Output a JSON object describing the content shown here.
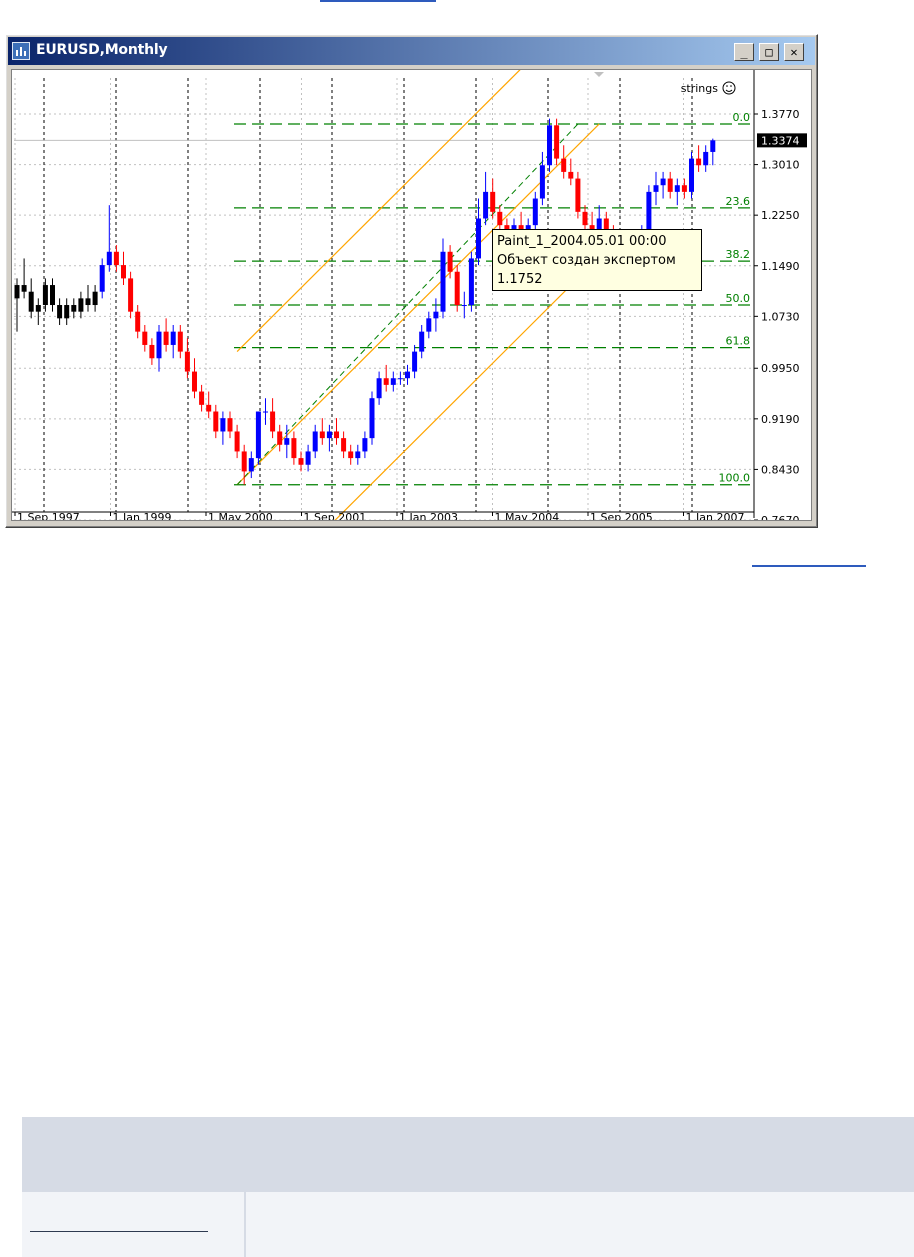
{
  "window": {
    "title": "EURUSD,Monthly",
    "buttons": {
      "minimize": "_",
      "maximize": "□",
      "close": "✕"
    }
  },
  "chart_data": {
    "type": "candlestick",
    "symbol": "EURUSD",
    "timeframe": "Monthly",
    "indicator_label": "strings",
    "indicator_icon": "smiley-icon",
    "price_axis": {
      "ticks": [
        "1.3770",
        "1.3010",
        "1.2250",
        "1.1490",
        "1.0730",
        "0.9950",
        "0.9190",
        "0.8430",
        "0.7670"
      ],
      "range": [
        0.767,
        1.377
      ]
    },
    "current_price": "1.3374",
    "time_axis": {
      "ticks": [
        "1 Sep 1997",
        "1 Jan 1999",
        "1 May 2000",
        "1 Sep 2001",
        "1 Jan 2003",
        "1 May 2004",
        "1 Sep 2005",
        "1 Jan 2007"
      ]
    },
    "fibonacci_levels": [
      {
        "label": "0.0",
        "price": 1.362
      },
      {
        "label": "23.6",
        "price": 1.236
      },
      {
        "label": "38.2",
        "price": 1.156
      },
      {
        "label": "50.0",
        "price": 1.09
      },
      {
        "label": "61.8",
        "price": 1.026
      },
      {
        "label": "100.0",
        "price": 0.82
      }
    ],
    "channel": {
      "start": {
        "month": 31,
        "price": 0.82
      },
      "end": {
        "month": 82,
        "price": 1.362
      },
      "offsets": [
        0.2,
        0,
        -0.2
      ]
    },
    "trendline": {
      "start": {
        "month": 31,
        "price": 0.82
      },
      "end": {
        "month": 79,
        "price": 1.362
      }
    },
    "candles": [
      [
        1.1,
        1.13,
        1.05,
        1.12
      ],
      [
        1.12,
        1.16,
        1.1,
        1.11
      ],
      [
        1.11,
        1.13,
        1.07,
        1.08
      ],
      [
        1.08,
        1.1,
        1.06,
        1.09
      ],
      [
        1.09,
        1.13,
        1.08,
        1.12
      ],
      [
        1.12,
        1.13,
        1.08,
        1.09
      ],
      [
        1.09,
        1.1,
        1.06,
        1.07
      ],
      [
        1.07,
        1.1,
        1.06,
        1.09
      ],
      [
        1.09,
        1.1,
        1.07,
        1.08
      ],
      [
        1.08,
        1.11,
        1.07,
        1.1
      ],
      [
        1.1,
        1.12,
        1.08,
        1.09
      ],
      [
        1.09,
        1.12,
        1.08,
        1.11
      ],
      [
        1.11,
        1.16,
        1.1,
        1.15
      ],
      [
        1.15,
        1.24,
        1.14,
        1.17
      ],
      [
        1.17,
        1.18,
        1.14,
        1.15
      ],
      [
        1.15,
        1.17,
        1.12,
        1.13
      ],
      [
        1.13,
        1.14,
        1.07,
        1.08
      ],
      [
        1.08,
        1.09,
        1.04,
        1.05
      ],
      [
        1.05,
        1.06,
        1.02,
        1.03
      ],
      [
        1.03,
        1.04,
        1.0,
        1.01
      ],
      [
        1.01,
        1.06,
        0.99,
        1.05
      ],
      [
        1.05,
        1.07,
        1.02,
        1.03
      ],
      [
        1.03,
        1.06,
        1.01,
        1.05
      ],
      [
        1.05,
        1.06,
        1.01,
        1.02
      ],
      [
        1.02,
        1.04,
        0.98,
        0.99
      ],
      [
        0.99,
        1.01,
        0.95,
        0.96
      ],
      [
        0.96,
        0.97,
        0.93,
        0.94
      ],
      [
        0.94,
        0.96,
        0.92,
        0.93
      ],
      [
        0.93,
        0.94,
        0.89,
        0.9
      ],
      [
        0.9,
        0.93,
        0.88,
        0.92
      ],
      [
        0.92,
        0.93,
        0.89,
        0.9
      ],
      [
        0.9,
        0.91,
        0.86,
        0.87
      ],
      [
        0.87,
        0.88,
        0.82,
        0.84
      ],
      [
        0.84,
        0.87,
        0.83,
        0.86
      ],
      [
        0.86,
        0.93,
        0.85,
        0.93
      ],
      [
        0.93,
        0.95,
        0.91,
        0.93
      ],
      [
        0.93,
        0.95,
        0.89,
        0.9
      ],
      [
        0.9,
        0.91,
        0.87,
        0.88
      ],
      [
        0.88,
        0.91,
        0.86,
        0.89
      ],
      [
        0.89,
        0.9,
        0.85,
        0.86
      ],
      [
        0.86,
        0.87,
        0.84,
        0.85
      ],
      [
        0.85,
        0.88,
        0.84,
        0.87
      ],
      [
        0.87,
        0.91,
        0.86,
        0.9
      ],
      [
        0.9,
        0.92,
        0.88,
        0.89
      ],
      [
        0.89,
        0.91,
        0.87,
        0.9
      ],
      [
        0.9,
        0.92,
        0.88,
        0.89
      ],
      [
        0.89,
        0.9,
        0.86,
        0.87
      ],
      [
        0.87,
        0.88,
        0.85,
        0.86
      ],
      [
        0.86,
        0.88,
        0.85,
        0.87
      ],
      [
        0.87,
        0.9,
        0.86,
        0.89
      ],
      [
        0.89,
        0.96,
        0.88,
        0.95
      ],
      [
        0.95,
        0.99,
        0.94,
        0.98
      ],
      [
        0.98,
        1.0,
        0.96,
        0.97
      ],
      [
        0.97,
        0.99,
        0.96,
        0.98
      ],
      [
        0.98,
        0.99,
        0.97,
        0.98
      ],
      [
        0.98,
        1.0,
        0.97,
        0.99
      ],
      [
        0.99,
        1.03,
        0.98,
        1.02
      ],
      [
        1.02,
        1.06,
        1.01,
        1.05
      ],
      [
        1.05,
        1.08,
        1.04,
        1.07
      ],
      [
        1.07,
        1.1,
        1.05,
        1.08
      ],
      [
        1.08,
        1.19,
        1.07,
        1.17
      ],
      [
        1.17,
        1.18,
        1.13,
        1.14
      ],
      [
        1.14,
        1.15,
        1.08,
        1.09
      ],
      [
        1.09,
        1.11,
        1.07,
        1.09
      ],
      [
        1.09,
        1.17,
        1.08,
        1.16
      ],
      [
        1.16,
        1.25,
        1.15,
        1.22
      ],
      [
        1.22,
        1.29,
        1.21,
        1.26
      ],
      [
        1.26,
        1.28,
        1.22,
        1.23
      ],
      [
        1.23,
        1.24,
        1.18,
        1.21
      ],
      [
        1.21,
        1.22,
        1.16,
        1.19
      ],
      [
        1.19,
        1.22,
        1.18,
        1.21
      ],
      [
        1.21,
        1.23,
        1.18,
        1.19
      ],
      [
        1.19,
        1.22,
        1.18,
        1.21
      ],
      [
        1.21,
        1.26,
        1.2,
        1.25
      ],
      [
        1.25,
        1.32,
        1.24,
        1.3
      ],
      [
        1.3,
        1.37,
        1.29,
        1.36
      ],
      [
        1.36,
        1.37,
        1.3,
        1.31
      ],
      [
        1.31,
        1.33,
        1.28,
        1.29
      ],
      [
        1.29,
        1.31,
        1.27,
        1.28
      ],
      [
        1.28,
        1.29,
        1.22,
        1.23
      ],
      [
        1.23,
        1.24,
        1.2,
        1.21
      ],
      [
        1.21,
        1.23,
        1.19,
        1.2
      ],
      [
        1.2,
        1.24,
        1.19,
        1.22
      ],
      [
        1.22,
        1.23,
        1.18,
        1.19
      ],
      [
        1.19,
        1.21,
        1.17,
        1.18
      ],
      [
        1.18,
        1.2,
        1.16,
        1.17
      ],
      [
        1.17,
        1.2,
        1.16,
        1.19
      ],
      [
        1.19,
        1.2,
        1.17,
        1.18
      ],
      [
        1.18,
        1.21,
        1.17,
        1.2
      ],
      [
        1.2,
        1.27,
        1.19,
        1.26
      ],
      [
        1.26,
        1.29,
        1.24,
        1.27
      ],
      [
        1.27,
        1.29,
        1.25,
        1.28
      ],
      [
        1.28,
        1.29,
        1.25,
        1.26
      ],
      [
        1.26,
        1.28,
        1.24,
        1.27
      ],
      [
        1.27,
        1.28,
        1.25,
        1.26
      ],
      [
        1.26,
        1.32,
        1.25,
        1.31
      ],
      [
        1.31,
        1.33,
        1.29,
        1.3
      ],
      [
        1.3,
        1.33,
        1.29,
        1.32
      ],
      [
        1.32,
        1.34,
        1.3,
        1.3374
      ]
    ]
  },
  "tooltip": {
    "line1": "Paint_1_2004.05.01 00:00",
    "line2": "Объект создан экспертом",
    "line3": "1.1752"
  }
}
